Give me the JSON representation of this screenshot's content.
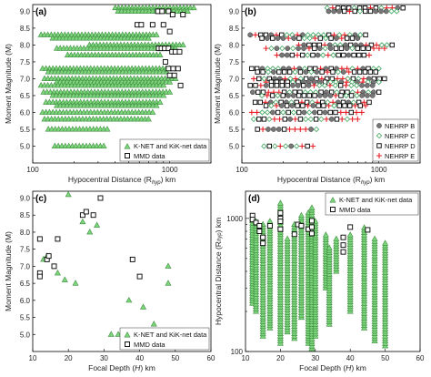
{
  "chart_data": [
    {
      "panel": "(a)",
      "type": "scatter",
      "xlabel": "Hypocentral Distance (R_hyp) km",
      "ylabel": "Moment Magnitude (M)",
      "xscale": "log",
      "xlim": [
        100,
        2000
      ],
      "ylim": [
        4.5,
        9.2
      ],
      "yticks": [
        5.0,
        5.5,
        6.0,
        6.5,
        7.0,
        7.5,
        8.0,
        8.5,
        9.0
      ],
      "xticks": [
        100,
        1000
      ],
      "legend": "bottom-right",
      "series": [
        {
          "name": "K-NET and KiK-net data",
          "marker": "triangle",
          "color": "#7dd67d",
          "rows": [
            {
              "m": 9.1,
              "x": [
                400,
                1500
              ]
            },
            {
              "m": 9.0,
              "x": [
                420,
                1350
              ]
            },
            {
              "m": 8.3,
              "x": [
                115,
                800
              ]
            },
            {
              "m": 8.2,
              "x": [
                140,
                700
              ]
            },
            {
              "m": 8.0,
              "x": [
                260,
                1250
              ]
            },
            {
              "m": 7.9,
              "x": [
                150,
                1100
              ]
            },
            {
              "m": 7.7,
              "x": [
                180,
                850
              ]
            },
            {
              "m": 7.3,
              "x": [
                118,
                1000
              ]
            },
            {
              "m": 7.2,
              "x": [
                130,
                950
              ]
            },
            {
              "m": 7.0,
              "x": [
                122,
                1100
              ]
            },
            {
              "m": 6.9,
              "x": [
                150,
                1000
              ]
            },
            {
              "m": 6.8,
              "x": [
                115,
                900
              ]
            },
            {
              "m": 6.6,
              "x": [
                120,
                1000
              ]
            },
            {
              "m": 6.5,
              "x": [
                140,
                900
              ]
            },
            {
              "m": 6.3,
              "x": [
                125,
                850
              ]
            },
            {
              "m": 6.2,
              "x": [
                150,
                800
              ]
            },
            {
              "m": 6.0,
              "x": [
                118,
                750
              ]
            },
            {
              "m": 5.8,
              "x": [
                122,
                700
              ]
            },
            {
              "m": 5.5,
              "x": [
                130,
                350
              ]
            },
            {
              "m": 5.0,
              "x": [
                145,
                330
              ]
            }
          ]
        },
        {
          "name": "MMD data",
          "marker": "square",
          "color": "#ffffff",
          "points": [
            [
              580,
              8.6
            ],
            [
              620,
              8.6
            ],
            [
              750,
              8.6
            ],
            [
              820,
              9.0
            ],
            [
              880,
              9.0
            ],
            [
              980,
              9.0
            ],
            [
              1050,
              8.9
            ],
            [
              1250,
              8.9
            ],
            [
              900,
              8.6
            ],
            [
              1000,
              8.4
            ],
            [
              830,
              7.9
            ],
            [
              870,
              7.9
            ],
            [
              920,
              7.9
            ],
            [
              980,
              7.9
            ],
            [
              1040,
              7.8
            ],
            [
              1100,
              7.8
            ],
            [
              1180,
              7.8
            ],
            [
              930,
              7.5
            ],
            [
              980,
              7.3
            ],
            [
              1060,
              7.3
            ],
            [
              1150,
              7.3
            ],
            [
              1000,
              7.1
            ],
            [
              1080,
              7.1
            ],
            [
              1200,
              6.8
            ]
          ]
        }
      ]
    },
    {
      "panel": "(b)",
      "type": "scatter",
      "xlabel": "Hypocentral Distance (R_hyp) km",
      "xscale": "log",
      "xlim": [
        100,
        2000
      ],
      "ylim": [
        4.5,
        9.2
      ],
      "yticks": [
        5.0,
        5.5,
        6.0,
        6.5,
        7.0,
        7.5,
        8.0,
        8.5,
        9.0
      ],
      "xticks": [
        100,
        1000
      ],
      "legend": "bottom-right",
      "series": [
        {
          "name": "NEHRP B",
          "marker": "circle",
          "color": "#777777"
        },
        {
          "name": "NEHRP C",
          "marker": "diamond",
          "color": "#3aa35a"
        },
        {
          "name": "NEHRP D",
          "marker": "square",
          "color": "#ffffff"
        },
        {
          "name": "NEHRP E",
          "marker": "cross",
          "color": "#e8232a"
        }
      ],
      "rows": [
        {
          "m": 9.1,
          "x": [
            420,
            1500
          ]
        },
        {
          "m": 9.0,
          "x": [
            430,
            1350
          ]
        },
        {
          "m": 8.3,
          "x": [
            115,
            800
          ]
        },
        {
          "m": 8.2,
          "x": [
            140,
            700
          ]
        },
        {
          "m": 8.0,
          "x": [
            260,
            1250
          ]
        },
        {
          "m": 7.9,
          "x": [
            150,
            1100
          ]
        },
        {
          "m": 7.7,
          "x": [
            180,
            850
          ]
        },
        {
          "m": 7.3,
          "x": [
            118,
            1000
          ]
        },
        {
          "m": 7.2,
          "x": [
            130,
            950
          ]
        },
        {
          "m": 7.0,
          "x": [
            122,
            1100
          ]
        },
        {
          "m": 6.9,
          "x": [
            150,
            1000
          ]
        },
        {
          "m": 6.8,
          "x": [
            115,
            900
          ]
        },
        {
          "m": 6.6,
          "x": [
            120,
            1000
          ]
        },
        {
          "m": 6.5,
          "x": [
            140,
            900
          ]
        },
        {
          "m": 6.3,
          "x": [
            125,
            850
          ]
        },
        {
          "m": 6.2,
          "x": [
            150,
            800
          ]
        },
        {
          "m": 6.0,
          "x": [
            118,
            750
          ]
        },
        {
          "m": 5.8,
          "x": [
            122,
            700
          ]
        },
        {
          "m": 5.5,
          "x": [
            130,
            350
          ]
        },
        {
          "m": 5.0,
          "x": [
            145,
            330
          ]
        }
      ]
    },
    {
      "panel": "(c)",
      "type": "scatter",
      "xlabel": "Focal Depth (H) km",
      "ylabel": "Moment Magnitude (M)",
      "xlim": [
        10,
        60
      ],
      "ylim": [
        4.5,
        9.2
      ],
      "xticks": [
        10,
        20,
        30,
        40,
        50,
        60
      ],
      "yticks": [
        5.0,
        5.5,
        6.0,
        6.5,
        7.0,
        7.5,
        8.0,
        8.5,
        9.0
      ],
      "legend": "bottom-right",
      "series": [
        {
          "name": "K-NET and KiK-net data",
          "marker": "triangle",
          "color": "#7dd67d",
          "points": [
            [
              13,
              7.2
            ],
            [
              14,
              7.3
            ],
            [
              17,
              6.8
            ],
            [
              19,
              6.6
            ],
            [
              20,
              9.1
            ],
            [
              22,
              6.5
            ],
            [
              24,
              8.3
            ],
            [
              26,
              8.0
            ],
            [
              28,
              8.2
            ],
            [
              32,
              5.0
            ],
            [
              34,
              5.0
            ],
            [
              37,
              6.0
            ],
            [
              41,
              5.8
            ],
            [
              44,
              5.3
            ],
            [
              48,
              7.0
            ],
            [
              48,
              6.5
            ]
          ]
        },
        {
          "name": "MMD data",
          "marker": "square",
          "color": "#ffffff",
          "points": [
            [
              12,
              7.8
            ],
            [
              12,
              6.8
            ],
            [
              12,
              6.7
            ],
            [
              14,
              7.2
            ],
            [
              14.5,
              7.3
            ],
            [
              16,
              7.0
            ],
            [
              17,
              7.8
            ],
            [
              24,
              8.5
            ],
            [
              25,
              8.6
            ],
            [
              27,
              8.5
            ],
            [
              29,
              9.0
            ],
            [
              38,
              7.2
            ],
            [
              40,
              6.7
            ]
          ]
        }
      ]
    },
    {
      "panel": "(d)",
      "type": "scatter",
      "xlabel": "Focal Depth (H) km",
      "ylabel": "Hypocentral Distance (R_hyp) km",
      "xlim": [
        10,
        60
      ],
      "ylim": [
        100,
        1600
      ],
      "yscale": "log",
      "xticks": [
        10,
        20,
        30,
        40,
        50,
        60
      ],
      "yticks": [
        100,
        1000
      ],
      "legend": "top-right",
      "series": [
        {
          "name": "K-NET and KiK-net data",
          "marker": "triangle",
          "color": "#7dd67d",
          "columns": [
            {
              "h": 12,
              "y": [
                230,
                1000
              ]
            },
            {
              "h": 13,
              "y": [
                200,
                950
              ]
            },
            {
              "h": 15,
              "y": [
                130,
                900
              ]
            },
            {
              "h": 17,
              "y": [
                150,
                950
              ]
            },
            {
              "h": 20,
              "y": [
                115,
                1300
              ]
            },
            {
              "h": 22,
              "y": [
                140,
                700
              ]
            },
            {
              "h": 24,
              "y": [
                125,
                900
              ]
            },
            {
              "h": 26,
              "y": [
                180,
                1050
              ]
            },
            {
              "h": 28,
              "y": [
                115,
                1100
              ]
            },
            {
              "h": 29,
              "y": [
                105,
                1200
              ]
            },
            {
              "h": 30,
              "y": [
                130,
                950
              ]
            },
            {
              "h": 33,
              "y": [
                300,
                750
              ]
            },
            {
              "h": 34,
              "y": [
                160,
                600
              ]
            },
            {
              "h": 36,
              "y": [
                400,
                700
              ]
            },
            {
              "h": 40,
              "y": [
                200,
                750
              ]
            },
            {
              "h": 44,
              "y": [
                150,
                850
              ]
            },
            {
              "h": 47,
              "y": [
                120,
                700
              ]
            },
            {
              "h": 50,
              "y": [
                110,
                650
              ]
            }
          ]
        },
        {
          "name": "MMD data",
          "marker": "square",
          "color": "#ffffff",
          "points": [
            [
              12,
              1050
            ],
            [
              12,
              980
            ],
            [
              13,
              930
            ],
            [
              14,
              880
            ],
            [
              14,
              800
            ],
            [
              15,
              720
            ],
            [
              15,
              650
            ],
            [
              17,
              880
            ],
            [
              20,
              1100
            ],
            [
              20,
              1000
            ],
            [
              20,
              950
            ],
            [
              20,
              830
            ],
            [
              24,
              760
            ],
            [
              25,
              900
            ],
            [
              26,
              880
            ],
            [
              28,
              830
            ],
            [
              29,
              960
            ],
            [
              29,
              860
            ],
            [
              29,
              770
            ],
            [
              38,
              720
            ],
            [
              38,
              630
            ],
            [
              38,
              560
            ],
            [
              40,
              860
            ],
            [
              45,
              820
            ]
          ]
        }
      ]
    }
  ],
  "labels": {
    "a": "(a)",
    "b": "(b)",
    "c": "(c)",
    "d": "(d)",
    "ylab_mag": "Moment Magnitude (M)",
    "ylab_dist": "Hypocentral Distance (R",
    "ylab_dist_sub": "hyp",
    "ylab_dist_end": ") km",
    "xlab_dist_pre": "Hypocentral Distance (R",
    "xlab_dist_sub": "hyp",
    "xlab_dist_end": ") km",
    "xlab_depth_pre": "Focal Depth (",
    "xlab_depth_var": "H",
    "xlab_depth_end": ") km",
    "leg_knet": "K-NET and KiK-net data",
    "leg_mmd": "MMD data",
    "leg_b": "NEHRP B",
    "leg_c": "NEHRP C",
    "leg_d": "NEHRP D",
    "leg_e": "NEHRP E"
  },
  "colors": {
    "triangle": "#7dd67d",
    "triangle_stroke": "#3d8d3d",
    "nehrp_b": "#777777",
    "nehrp_c": "#3aa35a",
    "nehrp_e": "#e8232a"
  }
}
